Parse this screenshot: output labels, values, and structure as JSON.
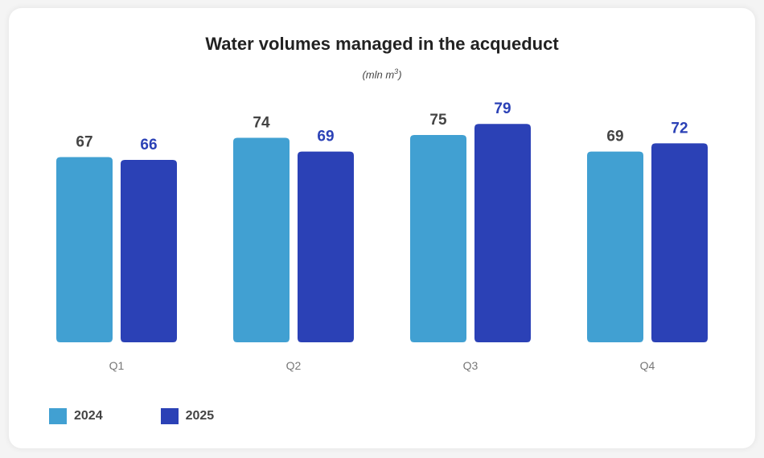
{
  "chart_data": {
    "type": "bar",
    "title": "Water volumes managed in the acqueduct",
    "subtitle": "(mln m³)",
    "subtitle_base": "(mln m",
    "subtitle_sup": "3",
    "subtitle_end": ")",
    "xlabel": "",
    "ylabel": "",
    "categories": [
      "Q1",
      "Q2",
      "Q3",
      "Q4"
    ],
    "series": [
      {
        "name": "2024",
        "values": [
          67,
          74,
          75,
          69
        ],
        "color": "#41a0d2",
        "label_color": "#444444"
      },
      {
        "name": "2025",
        "values": [
          66,
          69,
          79,
          72
        ],
        "color": "#2b41b6",
        "label_color": "#2b41b6"
      }
    ],
    "ylim": [
      0,
      80
    ],
    "grid": false,
    "legend_position": "bottom-left",
    "data_labels": true
  }
}
